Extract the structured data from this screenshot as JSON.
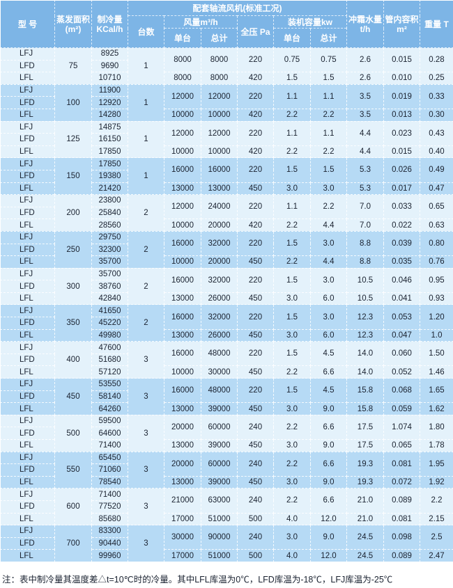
{
  "header": {
    "model": "型 号",
    "area": "蒸发面积(m²)",
    "cooling": "制冷量 KCal/h",
    "fan_group": "配套轴流风机(标准工况)",
    "units": "台数",
    "airflow": "风量m³/h",
    "airflow_single": "单台",
    "airflow_total": "总计",
    "pressure": "全压 Pa",
    "power": "装机容量kw",
    "power_single": "单台",
    "power_total": "总计",
    "defrost": "冲霜水量 t/h",
    "volume": "管内容积 m²",
    "weight": "重量 T"
  },
  "groups": [
    {
      "models": [
        "LFJ",
        "LFD",
        "LFL"
      ],
      "area": "75",
      "cooling": [
        "8925",
        "9690",
        "10710"
      ],
      "units": "1",
      "fans": [
        [
          "8000",
          "8000",
          "220",
          "0.75",
          "0.75",
          "2.6",
          "0.015",
          "0.28"
        ],
        [
          "8000",
          "8000",
          "420",
          "1.5",
          "1.5",
          "2.6",
          "0.010",
          "0.25"
        ]
      ]
    },
    {
      "models": [
        "LFJ",
        "LFD",
        "LFL"
      ],
      "area": "100",
      "cooling": [
        "11900",
        "12920",
        "14280"
      ],
      "units": "1",
      "fans": [
        [
          "12000",
          "12000",
          "220",
          "1.1",
          "1.1",
          "3.5",
          "0.019",
          "0.33"
        ],
        [
          "10000",
          "10000",
          "420",
          "2.2",
          "2.2",
          "3.5",
          "0.013",
          "0.30"
        ]
      ]
    },
    {
      "models": [
        "LFJ",
        "LFD",
        "LFL"
      ],
      "area": "125",
      "cooling": [
        "14875",
        "16150",
        "17850"
      ],
      "units": "1",
      "fans": [
        [
          "12000",
          "12000",
          "220",
          "1.1",
          "1.1",
          "4.4",
          "0.023",
          "0.43"
        ],
        [
          "10000",
          "10000",
          "420",
          "2.2",
          "2.2",
          "4.4",
          "0.015",
          "0.40"
        ]
      ]
    },
    {
      "models": [
        "LFJ",
        "LFD",
        "LFL"
      ],
      "area": "150",
      "cooling": [
        "17850",
        "19380",
        "21420"
      ],
      "units": "1",
      "fans": [
        [
          "16000",
          "16000",
          "220",
          "1.5",
          "1.5",
          "5.3",
          "0.026",
          "0.49"
        ],
        [
          "13000",
          "13000",
          "450",
          "3.0",
          "3.0",
          "5.3",
          "0.017",
          "0.47"
        ]
      ]
    },
    {
      "models": [
        "LFJ",
        "LFD",
        "LFL"
      ],
      "area": "200",
      "cooling": [
        "23800",
        "25840",
        "28560"
      ],
      "units": "2",
      "fans": [
        [
          "12000",
          "24000",
          "220",
          "1.1",
          "2.2",
          "7.0",
          "0.033",
          "0.65"
        ],
        [
          "10000",
          "20000",
          "420",
          "2.2",
          "4.4",
          "7.0",
          "0.022",
          "0.63"
        ]
      ]
    },
    {
      "models": [
        "LFJ",
        "LFD",
        "LFL"
      ],
      "area": "250",
      "cooling": [
        "29750",
        "32300",
        "35700"
      ],
      "units": "2",
      "fans": [
        [
          "16000",
          "32000",
          "220",
          "1.5",
          "3.0",
          "8.8",
          "0.039",
          "0.80"
        ],
        [
          "10000",
          "20000",
          "450",
          "2.2",
          "4.4",
          "8.8",
          "0.035",
          "0.76"
        ]
      ]
    },
    {
      "models": [
        "LFJ",
        "LFD",
        "LFL"
      ],
      "area": "300",
      "cooling": [
        "35700",
        "38760",
        "42840"
      ],
      "units": "2",
      "fans": [
        [
          "16000",
          "32000",
          "220",
          "1.5",
          "3.0",
          "10.5",
          "0.046",
          "0.95"
        ],
        [
          "13000",
          "26000",
          "450",
          "3.0",
          "6.0",
          "10.5",
          "0.041",
          "0.93"
        ]
      ]
    },
    {
      "models": [
        "LFJ",
        "LFD",
        "LFL"
      ],
      "area": "350",
      "cooling": [
        "41650",
        "45220",
        "49980"
      ],
      "units": "2",
      "fans": [
        [
          "16000",
          "32000",
          "220",
          "1.5",
          "3.0",
          "12.3",
          "0.053",
          "1.20"
        ],
        [
          "13000",
          "26000",
          "450",
          "3.0",
          "6.0",
          "12.3",
          "0.047",
          "1.0"
        ]
      ]
    },
    {
      "models": [
        "LFJ",
        "LFD",
        "LFL"
      ],
      "area": "400",
      "cooling": [
        "47600",
        "51680",
        "57120"
      ],
      "units": "3",
      "fans": [
        [
          "16000",
          "48000",
          "220",
          "1.5",
          "4.5",
          "14.0",
          "0.060",
          "1.50"
        ],
        [
          "10000",
          "30000",
          "450",
          "2.2",
          "6.6",
          "14.0",
          "0.052",
          "1.46"
        ]
      ]
    },
    {
      "models": [
        "LFJ",
        "LFD",
        "LFL"
      ],
      "area": "450",
      "cooling": [
        "53550",
        "58140",
        "64260"
      ],
      "units": "3",
      "fans": [
        [
          "16000",
          "48000",
          "220",
          "1.5",
          "4.5",
          "15.8",
          "0.068",
          "1.65"
        ],
        [
          "13000",
          "39000",
          "450",
          "3.0",
          "9.0",
          "15.8",
          "0.059",
          "1.62"
        ]
      ]
    },
    {
      "models": [
        "LFJ",
        "LFD",
        "LFL"
      ],
      "area": "500",
      "cooling": [
        "59500",
        "64600",
        "71400"
      ],
      "units": "3",
      "fans": [
        [
          "20000",
          "60000",
          "240",
          "2.2",
          "6.6",
          "17.5",
          "1.074",
          "1.80"
        ],
        [
          "13000",
          "39000",
          "450",
          "3.0",
          "9.0",
          "17.5",
          "0.065",
          "1.78"
        ]
      ]
    },
    {
      "models": [
        "LFJ",
        "LFD",
        "LFL"
      ],
      "area": "550",
      "cooling": [
        "65450",
        "71060",
        "78540"
      ],
      "units": "3",
      "fans": [
        [
          "20000",
          "60000",
          "240",
          "2.2",
          "6.6",
          "19.3",
          "0.081",
          "1.95"
        ],
        [
          "13000",
          "39000",
          "450",
          "3.0",
          "9.0",
          "19.3",
          "0.072",
          "1.92"
        ]
      ]
    },
    {
      "models": [
        "LFJ",
        "LFD",
        "LFL"
      ],
      "area": "600",
      "cooling": [
        "71400",
        "77520",
        "85680"
      ],
      "units": "3",
      "fans": [
        [
          "21000",
          "63000",
          "240",
          "2.2",
          "6.6",
          "21.0",
          "0.089",
          "2.2"
        ],
        [
          "17000",
          "51000",
          "500",
          "4.0",
          "12.0",
          "21.0",
          "0.081",
          "2.15"
        ]
      ]
    },
    {
      "models": [
        "LFJ",
        "LFD",
        "LFL"
      ],
      "area": "700",
      "cooling": [
        "83300",
        "90440",
        "99960"
      ],
      "units": "3",
      "fans": [
        [
          "30000",
          "90000",
          "240",
          "3.0",
          "9.0",
          "24.5",
          "0.098",
          "2.5"
        ],
        [
          "17000",
          "51000",
          "500",
          "4.0",
          "12.0",
          "24.5",
          "0.089",
          "2.47"
        ]
      ]
    }
  ],
  "note": "注：表中制冷量其温度差△t=10℃时的冷量。其中LFL库温为0℃，LFD库温为-18℃，LFJ库温为-25℃",
  "colors": {
    "header": "#7db5e6",
    "row_light": "#e4f2fb",
    "row_blue": "#b6daf5"
  }
}
